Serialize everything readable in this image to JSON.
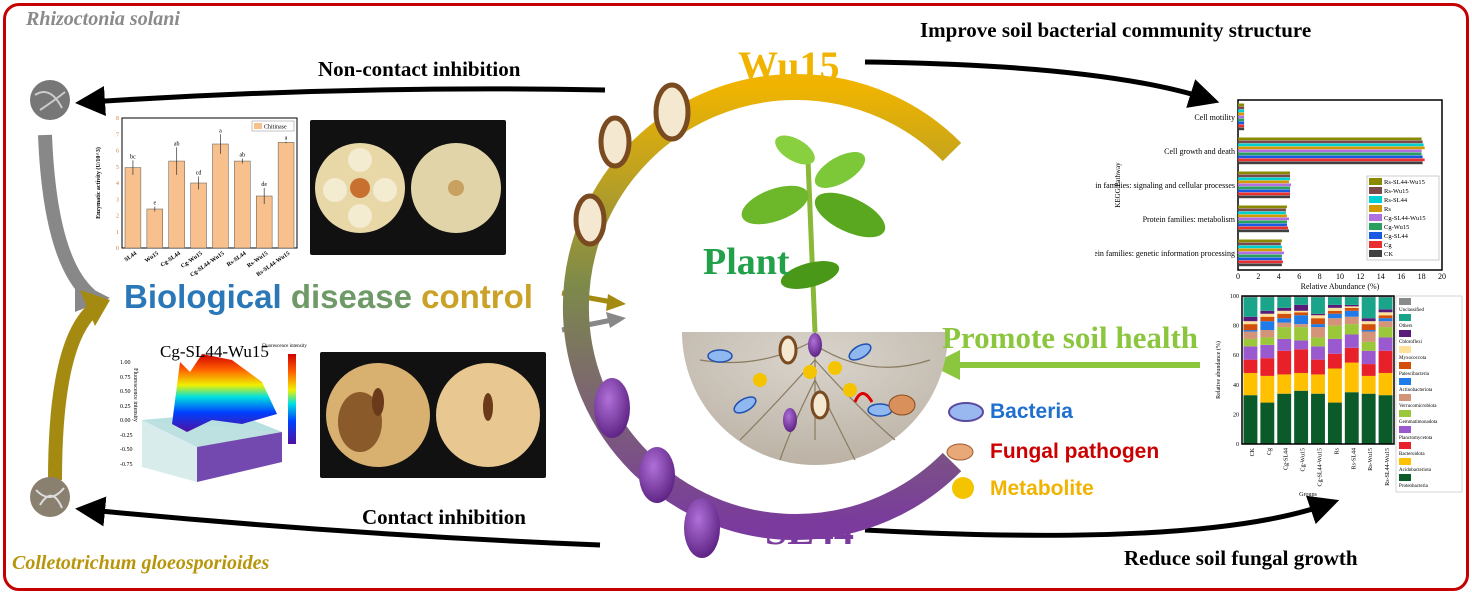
{
  "labels": {
    "rhizoctonia": "Rhizoctonia solani",
    "colletotrichum": "Colletotrichum gloeosporioides",
    "non_contact": "Non-contact inhibition",
    "contact": "Contact inhibition",
    "wu15": "Wu15",
    "sl44": "SL44",
    "plant": "Plant",
    "improve": "Improve soil bacterial community structure",
    "promote": "Promote soil health",
    "reduce": "Reduce soil fungal growth",
    "bio_words": [
      "Biological",
      "disease",
      "control"
    ],
    "legend": {
      "bacteria": "Bacteria",
      "fungal": "Fungal pathogen",
      "metabolite": "Metabolite"
    },
    "fluor_title": "Cg-SL44-Wu15",
    "fluor_colorbar": "Fluorescence intensity",
    "fluor_ylabel": "Fluorescence intensity",
    "fluor_yticks": [
      "1.00",
      "0.75",
      "0.50",
      "0.25",
      "0.00",
      "-0.25",
      "-0.50",
      "-0.75"
    ]
  },
  "colors": {
    "border": "#c40000",
    "wu15": "#f0b400",
    "sl44": "#7a3a9e",
    "plant": "#22a04a",
    "promote": "#8cc63f",
    "biological": "#2a78b8",
    "disease": "#6f9a68",
    "control": "#c9a227",
    "bacteria": "#1f6fd0",
    "fungal": "#cc0000",
    "metabolite": "#f0b400",
    "colletotrichum": "#b8960c",
    "rhizoctonia": "#8a8a8a"
  },
  "chart_data": [
    {
      "type": "bar",
      "title": "",
      "ylabel": "Enzymatic activity (U/10^3)",
      "legend": [
        "Chitinase"
      ],
      "ylim": [
        0,
        8
      ],
      "yticks": [
        0,
        1,
        2,
        3,
        4,
        5,
        6,
        7,
        8
      ],
      "categories": [
        "SL44",
        "Wu15",
        "Cg-SL44",
        "Cg-Wu15",
        "Cg-SL44-Wu15",
        "Rs-SL44",
        "Rs-Wu15",
        "Rs-SL44-Wu15"
      ],
      "values": [
        4.95,
        2.4,
        5.35,
        4.0,
        6.4,
        5.35,
        3.2,
        6.5
      ],
      "errors": [
        0.45,
        0.15,
        0.85,
        0.4,
        0.6,
        0.15,
        0.5,
        0.05
      ],
      "letters": [
        "bc",
        "e",
        "ab",
        "cd",
        "a",
        "ab",
        "de",
        "a"
      ],
      "color": "#f8c08c"
    },
    {
      "type": "bar",
      "orientation": "horizontal",
      "ylabel": "KEGG Pathway",
      "xlabel": "Relative Abundance (%)",
      "xlim": [
        0,
        20
      ],
      "xticks": [
        0,
        2,
        4,
        6,
        8,
        10,
        12,
        14,
        16,
        18,
        20
      ],
      "legend_position": "right",
      "categories": [
        "Cell motility",
        "Cell growth and death",
        "Protein families: signaling and cellular processes",
        "Protein families: metabolism",
        "Protein families: genetic information processing"
      ],
      "series": [
        {
          "name": "Rs-SL44-Wu15",
          "color": "#8a8a00",
          "values": [
            0.6,
            18.0,
            5.1,
            4.8,
            4.3
          ]
        },
        {
          "name": "Rs-Wu15",
          "color": "#7a4a4a",
          "values": [
            0.6,
            18.1,
            5.1,
            4.7,
            4.2
          ]
        },
        {
          "name": "Rs-SL44",
          "color": "#00d0d0",
          "values": [
            0.6,
            18.2,
            5.1,
            4.7,
            4.3
          ]
        },
        {
          "name": "Rs",
          "color": "#d09a00",
          "values": [
            0.6,
            18.3,
            5.0,
            4.8,
            4.3
          ]
        },
        {
          "name": "Cg-SL44-Wu15",
          "color": "#b070e0",
          "values": [
            0.6,
            18.0,
            5.2,
            5.0,
            4.5
          ]
        },
        {
          "name": "Cg-Wu15",
          "color": "#2aa060",
          "values": [
            0.6,
            18.0,
            5.1,
            4.8,
            4.3
          ]
        },
        {
          "name": "Cg-SL44",
          "color": "#1a5ae0",
          "values": [
            0.6,
            18.1,
            5.1,
            4.8,
            4.3
          ]
        },
        {
          "name": "Cg",
          "color": "#e83030",
          "values": [
            0.6,
            18.3,
            5.1,
            4.9,
            4.4
          ]
        },
        {
          "name": "CK",
          "color": "#404040",
          "values": [
            0.6,
            18.1,
            5.1,
            5.0,
            4.3
          ]
        }
      ]
    },
    {
      "type": "bar",
      "stacked": true,
      "ylabel": "Relative abundance (%)",
      "xlabel": "Groups",
      "ylim": [
        0,
        100
      ],
      "yticks": [
        0,
        20,
        40,
        60,
        80,
        100
      ],
      "legend_position": "right",
      "categories": [
        "CK",
        "Cg",
        "Cg-SL44",
        "Cg-Wu15",
        "Cg-SL44-Wu15",
        "Rs",
        "Rs-SL44",
        "Rs-Wu15",
        "Rs-SL44-Wu15"
      ],
      "series": [
        {
          "name": "Proteobacteria",
          "color": "#0b5a2a",
          "values": [
            33,
            28,
            34,
            36,
            34,
            28,
            35,
            34,
            33
          ]
        },
        {
          "name": "Acidobacteriota",
          "color": "#ffc000",
          "values": [
            15,
            18,
            13,
            12,
            13,
            23,
            20,
            12,
            15
          ]
        },
        {
          "name": "Bacteroidota",
          "color": "#e8202a",
          "values": [
            9,
            12,
            16,
            16,
            10,
            10,
            10,
            8,
            15
          ]
        },
        {
          "name": "Planctomycetota",
          "color": "#9b59d0",
          "values": [
            9,
            9,
            8,
            6,
            9,
            10,
            9,
            9,
            9
          ]
        },
        {
          "name": "Gemmatimonadota",
          "color": "#9bc83a",
          "values": [
            5,
            5,
            8,
            9,
            6,
            9,
            7,
            6,
            7
          ]
        },
        {
          "name": "Verrucomicrobiota",
          "color": "#d4947a",
          "values": [
            5,
            5,
            3,
            2,
            7,
            5,
            5,
            7,
            4
          ]
        },
        {
          "name": "Actinobacteriota",
          "color": "#1e7be8",
          "values": [
            1,
            6,
            3,
            6,
            2,
            3,
            4,
            1,
            2
          ]
        },
        {
          "name": "Patescibacteria",
          "color": "#d2500a",
          "values": [
            4,
            3,
            3,
            2,
            4,
            2,
            2,
            4,
            2
          ]
        },
        {
          "name": "Myxococcota",
          "color": "#ffe29a",
          "values": [
            2,
            2,
            2,
            1,
            2,
            2,
            1,
            2,
            2
          ]
        },
        {
          "name": "Chloroflexi",
          "color": "#5a1a7a",
          "values": [
            3,
            2,
            2,
            4,
            1,
            2,
            1,
            2,
            2
          ]
        },
        {
          "name": "Others",
          "color": "#1aa58a",
          "values": [
            13,
            9,
            7,
            5,
            11,
            5,
            5,
            14,
            8
          ]
        },
        {
          "name": "Unclassified",
          "color": "#8a8a8a",
          "values": [
            1,
            1,
            1,
            1,
            1,
            1,
            1,
            1,
            1
          ]
        }
      ]
    }
  ]
}
